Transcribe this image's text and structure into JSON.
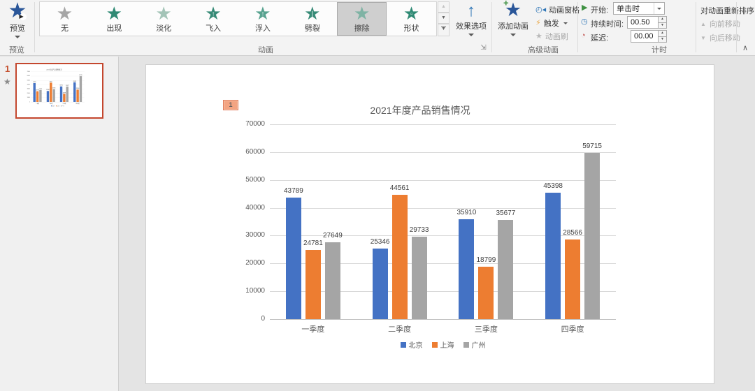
{
  "ribbon": {
    "preview": {
      "label": "预览",
      "group_label": "预览"
    },
    "animation_group": {
      "group_label": "动画",
      "gallery": [
        {
          "name": "none",
          "label": "无",
          "selected": false
        },
        {
          "name": "appear",
          "label": "出现",
          "selected": false
        },
        {
          "name": "fade",
          "label": "淡化",
          "selected": false
        },
        {
          "name": "fly-in",
          "label": "飞入",
          "selected": false
        },
        {
          "name": "float-in",
          "label": "浮入",
          "selected": false
        },
        {
          "name": "split",
          "label": "劈裂",
          "selected": false
        },
        {
          "name": "wipe",
          "label": "擦除",
          "selected": true
        },
        {
          "name": "shape",
          "label": "形状",
          "selected": false
        }
      ],
      "effect_options_label": "效果选项"
    },
    "advanced_group": {
      "group_label": "高级动画",
      "add_animation_label": "添加动画",
      "animation_pane_label": "动画窗格",
      "trigger_label": "触发",
      "animation_painter_label": "动画刷"
    },
    "timing_group": {
      "group_label": "计时",
      "start_label": "开始:",
      "start_value": "单击时",
      "duration_label": "持续时间:",
      "duration_value": "00.50",
      "delay_label": "延迟:",
      "delay_value": "00.00"
    },
    "reorder_group": {
      "header": "对动画重新排序",
      "move_earlier_label": "向前移动",
      "move_later_label": "向后移动"
    }
  },
  "slide_panel": {
    "slide_number": "1"
  },
  "slide": {
    "animation_badge": "1"
  },
  "chart_data": {
    "type": "bar",
    "title": "2021年度产品销售情况",
    "categories": [
      "一季度",
      "二季度",
      "三季度",
      "四季度"
    ],
    "series": [
      {
        "name": "北京",
        "color": "#4472C4",
        "values": [
          43789,
          25346,
          35910,
          45398
        ]
      },
      {
        "name": "上海",
        "color": "#ED7D31",
        "values": [
          24781,
          44561,
          18799,
          28566
        ]
      },
      {
        "name": "广州",
        "color": "#A5A5A5",
        "values": [
          27649,
          29733,
          35677,
          59715
        ]
      }
    ],
    "ylim": [
      0,
      70000
    ],
    "ytick_step": 10000,
    "grid": true,
    "legend_position": "bottom",
    "data_labels": true
  },
  "icons": {
    "preview-star-icon": "★",
    "gallery-star-icon": "★",
    "effect-options-icon": "↑",
    "add-animation-icon": "★+",
    "animation-pane-icon": "◴",
    "trigger-icon": "⚡",
    "animation-painter-icon": "★",
    "start-icon": "▶",
    "duration-icon": "◷",
    "delay-icon": "◔",
    "collapse-ribbon-icon": "∧",
    "dialog-launcher-icon": "⇲"
  },
  "colors": {
    "bar_blue": "#4472C4",
    "bar_orange": "#ED7D31",
    "bar_gray": "#A5A5A5",
    "anim_teal": "#2f8a74",
    "selection_border": "#c4472e",
    "badge_fill": "#f3a482"
  }
}
